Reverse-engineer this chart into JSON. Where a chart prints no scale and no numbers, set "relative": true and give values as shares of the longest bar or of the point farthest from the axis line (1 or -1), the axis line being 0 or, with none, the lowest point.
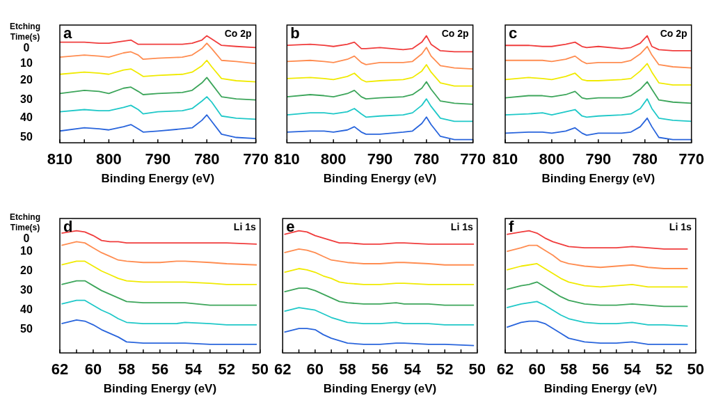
{
  "chart_data": [
    {
      "type": "line",
      "relative": true,
      "legend_title": "Etching Time(s)",
      "xlabel": "Binding Energy (eV)",
      "annotations": [
        "a",
        "Co 2p"
      ],
      "xlim": [
        810,
        770
      ],
      "xticks": [
        810,
        {
          "value": 805,
          "label": null
        },
        800,
        {
          "value": 795,
          "label": null
        },
        790,
        {
          "value": 785,
          "label": null
        },
        780,
        {
          "value": 775,
          "label": null
        },
        770
      ],
      "x": [
        810,
        805,
        802,
        800,
        797,
        795.5,
        794,
        793,
        790,
        785,
        783,
        781,
        780,
        779,
        777,
        774,
        770
      ],
      "series": [
        {
          "name": "0",
          "color": "#f03c3c",
          "values": [
            0.94,
            0.94,
            0.93,
            0.93,
            0.95,
            0.96,
            0.92,
            0.92,
            0.92,
            0.92,
            0.93,
            0.96,
            1,
            0.97,
            0.91,
            0.9,
            0.89
          ]
        },
        {
          "name": "10",
          "color": "#ff8c50",
          "values": [
            0.8,
            0.82,
            0.81,
            0.8,
            0.84,
            0.85,
            0.82,
            0.78,
            0.79,
            0.8,
            0.82,
            0.88,
            0.93,
            0.88,
            0.77,
            0.76,
            0.74
          ]
        },
        {
          "name": "20",
          "color": "#f0ea00",
          "values": [
            0.64,
            0.66,
            0.65,
            0.64,
            0.68,
            0.69,
            0.65,
            0.62,
            0.63,
            0.64,
            0.66,
            0.72,
            0.77,
            0.71,
            0.6,
            0.58,
            0.57
          ]
        },
        {
          "name": "30",
          "color": "#3ca55a",
          "values": [
            0.46,
            0.49,
            0.48,
            0.46,
            0.51,
            0.52,
            0.48,
            0.45,
            0.46,
            0.47,
            0.49,
            0.56,
            0.61,
            0.55,
            0.43,
            0.41,
            0.4
          ]
        },
        {
          "name": "40",
          "color": "#1ec8c8",
          "values": [
            0.29,
            0.31,
            0.3,
            0.3,
            0.33,
            0.35,
            0.31,
            0.27,
            0.29,
            0.3,
            0.32,
            0.39,
            0.43,
            0.38,
            0.25,
            0.23,
            0.22
          ]
        },
        {
          "name": "50",
          "color": "#2864dc",
          "values": [
            0.11,
            0.14,
            0.13,
            0.12,
            0.15,
            0.17,
            0.13,
            0.1,
            0.11,
            0.13,
            0.14,
            0.21,
            0.26,
            0.2,
            0.08,
            0.05,
            0.04
          ]
        }
      ]
    },
    {
      "type": "line",
      "relative": true,
      "xlabel": "Binding Energy (eV)",
      "annotations": [
        "b",
        "Co 2p"
      ],
      "xlim": [
        810,
        770
      ],
      "xticks": [
        810,
        {
          "value": 805,
          "label": null
        },
        800,
        {
          "value": 795,
          "label": null
        },
        790,
        {
          "value": 785,
          "label": null
        },
        780,
        {
          "value": 775,
          "label": null
        },
        770
      ],
      "x": [
        810,
        805,
        802,
        800,
        797,
        795.5,
        794,
        793,
        790,
        785,
        783,
        781,
        780,
        779,
        777,
        774,
        770
      ],
      "series": [
        {
          "color": "#f03c3c",
          "values": [
            0.91,
            0.92,
            0.91,
            0.9,
            0.92,
            0.94,
            0.88,
            0.88,
            0.89,
            0.87,
            0.88,
            0.94,
            1,
            0.92,
            0.86,
            0.85,
            0.85
          ]
        },
        {
          "color": "#ff8c50",
          "values": [
            0.76,
            0.77,
            0.76,
            0.75,
            0.78,
            0.81,
            0.75,
            0.73,
            0.75,
            0.75,
            0.76,
            0.83,
            0.89,
            0.81,
            0.72,
            0.7,
            0.69
          ]
        },
        {
          "color": "#f0ea00",
          "values": [
            0.6,
            0.61,
            0.6,
            0.59,
            0.62,
            0.65,
            0.59,
            0.57,
            0.58,
            0.59,
            0.61,
            0.67,
            0.73,
            0.66,
            0.56,
            0.53,
            0.53
          ]
        },
        {
          "color": "#3ca55a",
          "values": [
            0.43,
            0.45,
            0.44,
            0.43,
            0.46,
            0.49,
            0.43,
            0.41,
            0.42,
            0.43,
            0.45,
            0.51,
            0.57,
            0.5,
            0.39,
            0.37,
            0.36
          ]
        },
        {
          "color": "#1ec8c8",
          "values": [
            0.26,
            0.28,
            0.28,
            0.27,
            0.29,
            0.32,
            0.27,
            0.24,
            0.25,
            0.26,
            0.28,
            0.35,
            0.41,
            0.34,
            0.23,
            0.2,
            0.2
          ]
        },
        {
          "color": "#2864dc",
          "values": [
            0.1,
            0.11,
            0.11,
            0.1,
            0.12,
            0.15,
            0.1,
            0.08,
            0.08,
            0.1,
            0.11,
            0.18,
            0.24,
            0.17,
            0.06,
            0.03,
            0.03
          ]
        }
      ]
    },
    {
      "type": "line",
      "relative": true,
      "xlabel": "Binding Energy (eV)",
      "annotations": [
        "c",
        "Co 2p"
      ],
      "xlim": [
        810,
        770
      ],
      "xticks": [
        810,
        {
          "value": 805,
          "label": null
        },
        800,
        {
          "value": 795,
          "label": null
        },
        790,
        {
          "value": 785,
          "label": null
        },
        780,
        {
          "value": 775,
          "label": null
        },
        770
      ],
      "x": [
        810,
        805,
        802,
        800,
        797,
        795,
        793.5,
        792.5,
        790,
        785,
        783,
        781,
        779.5,
        778.5,
        777,
        774,
        770
      ],
      "series": [
        {
          "color": "#f03c3c",
          "values": [
            0.91,
            0.91,
            0.9,
            0.9,
            0.92,
            0.94,
            0.9,
            0.89,
            0.9,
            0.88,
            0.89,
            0.93,
            1,
            0.9,
            0.87,
            0.86,
            0.86
          ]
        },
        {
          "color": "#ff8c50",
          "values": [
            0.77,
            0.77,
            0.77,
            0.76,
            0.78,
            0.81,
            0.76,
            0.74,
            0.75,
            0.75,
            0.77,
            0.83,
            0.9,
            0.82,
            0.73,
            0.71,
            0.7
          ]
        },
        {
          "color": "#f0ea00",
          "values": [
            0.59,
            0.61,
            0.6,
            0.59,
            0.62,
            0.65,
            0.59,
            0.58,
            0.58,
            0.59,
            0.6,
            0.67,
            0.74,
            0.66,
            0.56,
            0.54,
            0.54
          ]
        },
        {
          "color": "#3ca55a",
          "values": [
            0.42,
            0.44,
            0.44,
            0.43,
            0.45,
            0.48,
            0.42,
            0.41,
            0.42,
            0.42,
            0.44,
            0.5,
            0.57,
            0.5,
            0.4,
            0.38,
            0.37
          ]
        },
        {
          "color": "#1ec8c8",
          "values": [
            0.26,
            0.27,
            0.28,
            0.26,
            0.29,
            0.31,
            0.25,
            0.24,
            0.25,
            0.26,
            0.27,
            0.32,
            0.41,
            0.32,
            0.23,
            0.21,
            0.2
          ]
        },
        {
          "color": "#2864dc",
          "values": [
            0.09,
            0.1,
            0.1,
            0.09,
            0.11,
            0.14,
            0.09,
            0.07,
            0.09,
            0.09,
            0.1,
            0.15,
            0.23,
            0.15,
            0.05,
            0.03,
            0.03
          ]
        }
      ]
    },
    {
      "type": "line",
      "relative": true,
      "legend_title": "Etching Time(s)",
      "xlabel": "Binding Energy (eV)",
      "annotations": [
        "d",
        "Li 1s"
      ],
      "xlim": [
        62,
        50
      ],
      "xticks": [
        62,
        {
          "value": 61,
          "label": null
        },
        60,
        {
          "value": 59,
          "label": null
        },
        58,
        {
          "value": 57,
          "label": null
        },
        56,
        {
          "value": 55,
          "label": null
        },
        54,
        {
          "value": 53,
          "label": null
        },
        52,
        {
          "value": 51,
          "label": null
        },
        50
      ],
      "x": [
        61.9,
        61,
        60.5,
        60,
        59.5,
        59,
        58.5,
        58,
        57,
        56,
        55,
        54.5,
        53,
        52,
        50.2
      ],
      "series": [
        {
          "name": "0",
          "color": "#f03c3c",
          "values": [
            0.98,
            1,
            0.99,
            0.96,
            0.92,
            0.91,
            0.91,
            0.9,
            0.9,
            0.9,
            0.9,
            0.9,
            0.9,
            0.9,
            0.89
          ]
        },
        {
          "name": "10",
          "color": "#ff8c50",
          "values": [
            0.88,
            0.91,
            0.9,
            0.86,
            0.82,
            0.79,
            0.76,
            0.75,
            0.74,
            0.74,
            0.75,
            0.75,
            0.74,
            0.73,
            0.72
          ]
        },
        {
          "name": "20",
          "color": "#f0ea00",
          "values": [
            0.72,
            0.75,
            0.75,
            0.71,
            0.67,
            0.64,
            0.61,
            0.59,
            0.58,
            0.58,
            0.58,
            0.58,
            0.57,
            0.56,
            0.56
          ]
        },
        {
          "name": "30",
          "color": "#3ca55a",
          "values": [
            0.56,
            0.59,
            0.59,
            0.55,
            0.51,
            0.48,
            0.45,
            0.42,
            0.41,
            0.41,
            0.41,
            0.41,
            0.39,
            0.39,
            0.39
          ]
        },
        {
          "name": "40",
          "color": "#1ec8c8",
          "values": [
            0.4,
            0.43,
            0.43,
            0.39,
            0.35,
            0.32,
            0.28,
            0.25,
            0.24,
            0.24,
            0.24,
            0.25,
            0.24,
            0.23,
            0.23
          ]
        },
        {
          "name": "50",
          "color": "#2864dc",
          "values": [
            0.24,
            0.27,
            0.26,
            0.23,
            0.19,
            0.16,
            0.13,
            0.09,
            0.08,
            0.08,
            0.08,
            0.08,
            0.07,
            0.07,
            0.07
          ]
        }
      ]
    },
    {
      "type": "line",
      "relative": true,
      "xlabel": "Binding Energy (eV)",
      "annotations": [
        "e",
        "Li 1s"
      ],
      "xlim": [
        62,
        50
      ],
      "xticks": [
        62,
        {
          "value": 61,
          "label": null
        },
        60,
        {
          "value": 59,
          "label": null
        },
        58,
        {
          "value": 57,
          "label": null
        },
        56,
        {
          "value": 55,
          "label": null
        },
        54,
        {
          "value": 53,
          "label": null
        },
        52,
        {
          "value": 51,
          "label": null
        },
        50
      ],
      "x": [
        61.9,
        61,
        60.5,
        60,
        59.5,
        59,
        58.5,
        58,
        57,
        56,
        55,
        54.5,
        53,
        52,
        50.2
      ],
      "series": [
        {
          "color": "#f03c3c",
          "values": [
            0.97,
            1,
            0.99,
            0.96,
            0.94,
            0.92,
            0.9,
            0.9,
            0.89,
            0.89,
            0.9,
            0.9,
            0.89,
            0.89,
            0.89
          ]
        },
        {
          "color": "#ff8c50",
          "values": [
            0.82,
            0.85,
            0.84,
            0.82,
            0.79,
            0.76,
            0.75,
            0.74,
            0.73,
            0.73,
            0.74,
            0.74,
            0.73,
            0.72,
            0.72
          ]
        },
        {
          "color": "#f0ea00",
          "values": [
            0.66,
            0.69,
            0.68,
            0.66,
            0.63,
            0.61,
            0.58,
            0.57,
            0.56,
            0.56,
            0.57,
            0.57,
            0.56,
            0.56,
            0.56
          ]
        },
        {
          "color": "#3ca55a",
          "values": [
            0.5,
            0.53,
            0.53,
            0.51,
            0.48,
            0.45,
            0.42,
            0.41,
            0.4,
            0.4,
            0.41,
            0.4,
            0.4,
            0.39,
            0.39
          ]
        },
        {
          "color": "#1ec8c8",
          "values": [
            0.34,
            0.37,
            0.36,
            0.35,
            0.32,
            0.29,
            0.27,
            0.25,
            0.24,
            0.24,
            0.25,
            0.24,
            0.24,
            0.23,
            0.23
          ]
        },
        {
          "color": "#2864dc",
          "values": [
            0.17,
            0.2,
            0.2,
            0.19,
            0.15,
            0.12,
            0.1,
            0.08,
            0.07,
            0.07,
            0.08,
            0.08,
            0.07,
            0.07,
            0.06
          ]
        }
      ]
    },
    {
      "type": "line",
      "relative": true,
      "xlabel": "Binding Energy (eV)",
      "annotations": [
        "f",
        "Li 1s"
      ],
      "xlim": [
        62,
        50
      ],
      "xticks": [
        62,
        {
          "value": 61,
          "label": null
        },
        60,
        {
          "value": 59,
          "label": null
        },
        58,
        {
          "value": 57,
          "label": null
        },
        56,
        {
          "value": 55,
          "label": null
        },
        54,
        {
          "value": 53,
          "label": null
        },
        52,
        {
          "value": 51,
          "label": null
        },
        50
      ],
      "x": [
        61.9,
        61,
        60.5,
        60,
        59.5,
        59,
        58.5,
        58,
        57,
        56,
        55,
        54,
        53,
        52,
        50.5
      ],
      "series": [
        {
          "color": "#f03c3c",
          "values": [
            0.97,
            0.99,
            1,
            0.98,
            0.94,
            0.91,
            0.89,
            0.87,
            0.86,
            0.86,
            0.86,
            0.87,
            0.86,
            0.85,
            0.85
          ]
        },
        {
          "color": "#ff8c50",
          "values": [
            0.83,
            0.86,
            0.88,
            0.88,
            0.84,
            0.8,
            0.75,
            0.73,
            0.71,
            0.7,
            0.71,
            0.72,
            0.7,
            0.69,
            0.69
          ]
        },
        {
          "color": "#f0ea00",
          "values": [
            0.68,
            0.71,
            0.72,
            0.73,
            0.69,
            0.65,
            0.61,
            0.58,
            0.55,
            0.54,
            0.55,
            0.56,
            0.54,
            0.54,
            0.54
          ]
        },
        {
          "color": "#3ca55a",
          "values": [
            0.52,
            0.55,
            0.56,
            0.58,
            0.54,
            0.5,
            0.46,
            0.43,
            0.4,
            0.39,
            0.39,
            0.4,
            0.39,
            0.38,
            0.38
          ]
        },
        {
          "color": "#1ec8c8",
          "values": [
            0.37,
            0.4,
            0.41,
            0.42,
            0.39,
            0.35,
            0.31,
            0.28,
            0.25,
            0.24,
            0.24,
            0.25,
            0.23,
            0.23,
            0.22
          ]
        },
        {
          "color": "#2864dc",
          "values": [
            0.21,
            0.25,
            0.26,
            0.26,
            0.24,
            0.2,
            0.16,
            0.12,
            0.09,
            0.08,
            0.08,
            0.09,
            0.07,
            0.07,
            0.07
          ]
        }
      ]
    }
  ]
}
